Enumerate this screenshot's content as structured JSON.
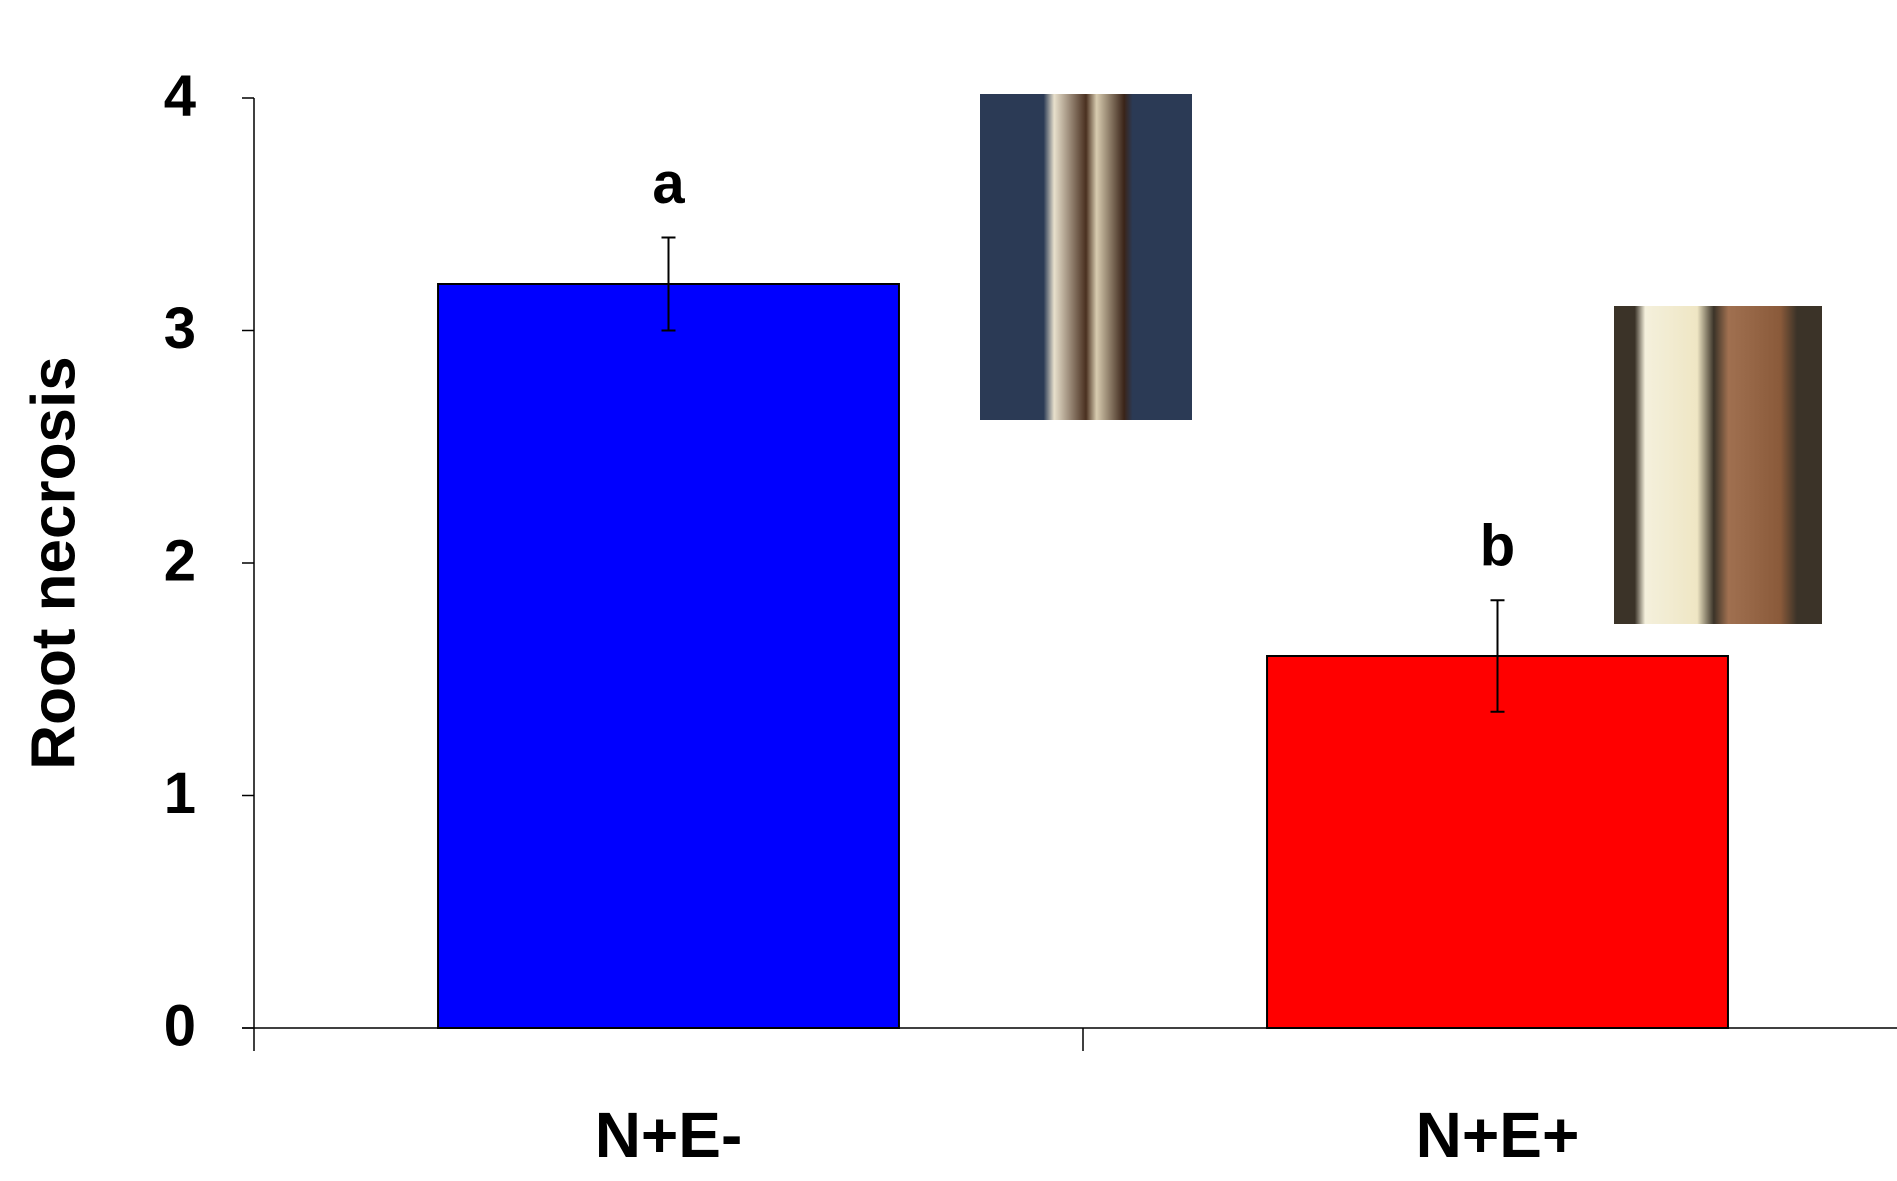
{
  "chart_data": {
    "type": "bar",
    "y_label": "Root necrosis",
    "categories": [
      "N+E-",
      "N+E+"
    ],
    "series": [
      {
        "values": [
          3.2,
          1.6
        ],
        "errors": [
          0.2,
          0.24
        ],
        "colors": [
          "#0000ff",
          "#ff0000"
        ],
        "annotations": [
          "a",
          "b"
        ]
      }
    ],
    "ylim": [
      0,
      4
    ],
    "yticks": [
      0,
      1,
      2,
      3,
      4
    ],
    "grid": false
  }
}
